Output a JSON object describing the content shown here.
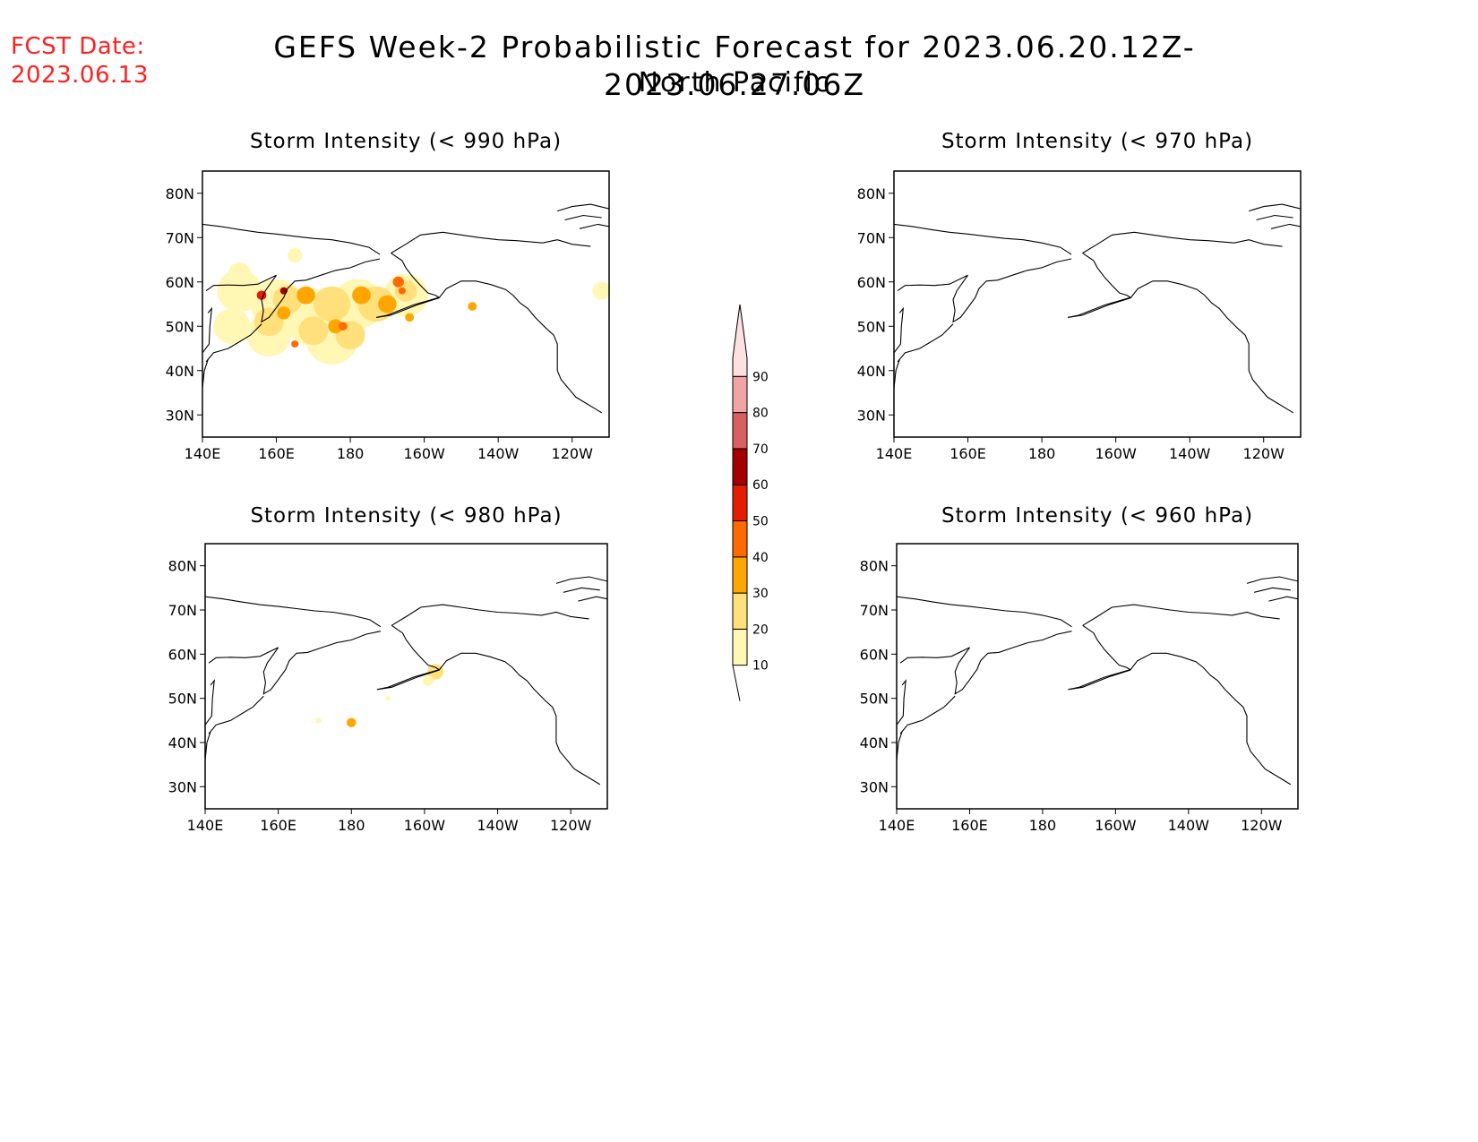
{
  "header": {
    "fcst_label": "FCST Date:",
    "fcst_date": "2023.06.13",
    "title": "GEFS Week-2 Probabilistic Forecast for 2023.06.20.12Z-2023.06.27.06Z",
    "subtitle": "North Pacific"
  },
  "axes": {
    "x_ticks": [
      "140E",
      "160E",
      "180",
      "160W",
      "140W",
      "120W"
    ],
    "y_ticks": [
      "80N",
      "70N",
      "60N",
      "50N",
      "40N",
      "30N"
    ]
  },
  "panels": [
    {
      "id": "p990",
      "title": "Storm Intensity (< 990 hPa)",
      "probability_field": "widespread 10-40% (peaks 50-60%) from 45N-65N, 140E-160W"
    },
    {
      "id": "p970",
      "title": "Storm Intensity (< 970 hPa)",
      "probability_field": "none"
    },
    {
      "id": "p980",
      "title": "Storm Intensity (< 980 hPa)",
      "probability_field": "isolated 10-20% near 50N-55N 165W and 45N 175W"
    },
    {
      "id": "p960",
      "title": "Storm Intensity (< 960 hPa)",
      "probability_field": "none"
    }
  ],
  "colorbar": {
    "levels": [
      "10",
      "20",
      "30",
      "40",
      "50",
      "60",
      "70",
      "80",
      "90"
    ],
    "colors": [
      "#fff7b3",
      "#ffe07a",
      "#ffa500",
      "#ff6a00",
      "#e41c00",
      "#a50000",
      "#d96060",
      "#f2a3a3",
      "#fde0e0"
    ]
  }
}
